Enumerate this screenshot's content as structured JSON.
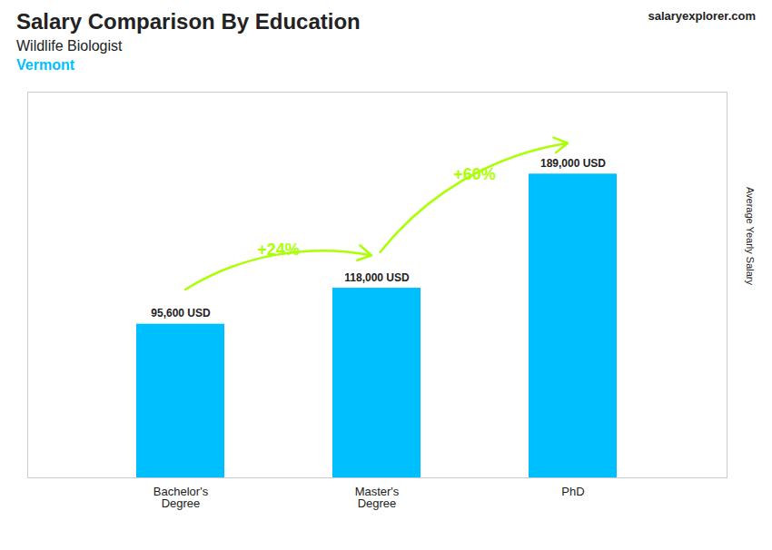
{
  "chart_data": {
    "type": "bar",
    "title": "Salary Comparison By Education",
    "subtitle": "Wildlife Biologist",
    "ylabel": "Average Yearly Salary",
    "categories": [
      "Bachelor's\nDegree",
      "Master's\nDegree",
      "PhD"
    ],
    "values": [
      95600,
      118000,
      189000
    ],
    "value_labels": [
      "95,600 USD",
      "118,000 USD",
      "189,000 USD"
    ],
    "data_labels": true,
    "color": "#00BFFF",
    "ylim": [
      0,
      240000
    ],
    "grid": false,
    "tick_labels": "x",
    "annotations": [
      {
        "text": "Vermont",
        "color": "#00BFFF"
      },
      {
        "text": "salaryexplorer.com"
      },
      {
        "text": "+24%",
        "from": "Bachelor's\nDegree",
        "to": "Master's\nDegree",
        "color": "#aaff00"
      },
      {
        "text": "+60%",
        "from": "Master's\nDegree",
        "to": "PhD",
        "color": "#aaff00"
      }
    ]
  }
}
